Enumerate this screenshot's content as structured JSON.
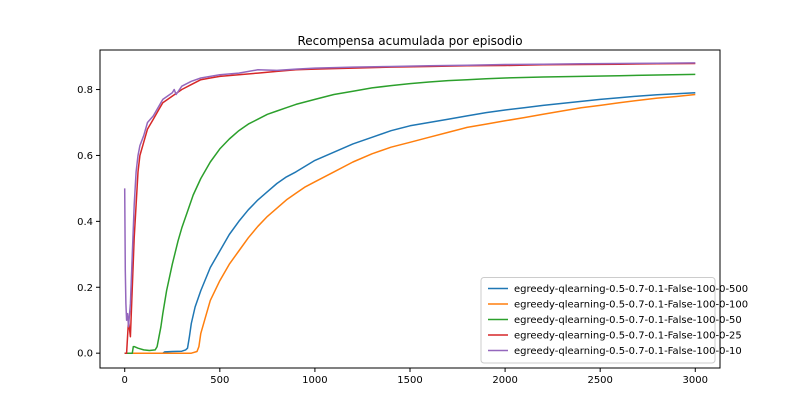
{
  "chart_data": {
    "type": "line",
    "title": "Recompensa acumulada por episodio",
    "xlabel": "",
    "ylabel": "",
    "xlim": [
      -130,
      3130
    ],
    "ylim": [
      -0.045,
      0.92
    ],
    "xticks": [
      0,
      500,
      1000,
      1500,
      2000,
      2500,
      3000
    ],
    "yticks": [
      0.0,
      0.2,
      0.4,
      0.6,
      0.8
    ],
    "ytick_labels": [
      "0.0",
      "0.2",
      "0.4",
      "0.6",
      "0.8"
    ],
    "grid": false,
    "legend_position": "bottom-right",
    "series": [
      {
        "name": "egreedy-qlearning-0.5-0.7-0.1-False-100-0-500",
        "color": "#1f77b4",
        "x": [
          0,
          200,
          210,
          250,
          300,
          320,
          330,
          340,
          350,
          370,
          400,
          450,
          500,
          550,
          600,
          650,
          700,
          750,
          800,
          850,
          900,
          1000,
          1100,
          1200,
          1300,
          1400,
          1500,
          1600,
          1700,
          1800,
          1900,
          2000,
          2100,
          2200,
          2300,
          2400,
          2500,
          2600,
          2700,
          2800,
          2900,
          3000
        ],
        "y": [
          0.0,
          0.0,
          0.004,
          0.005,
          0.006,
          0.01,
          0.015,
          0.05,
          0.09,
          0.14,
          0.19,
          0.26,
          0.31,
          0.36,
          0.4,
          0.435,
          0.465,
          0.49,
          0.515,
          0.535,
          0.55,
          0.585,
          0.61,
          0.635,
          0.655,
          0.675,
          0.69,
          0.7,
          0.71,
          0.72,
          0.73,
          0.738,
          0.745,
          0.752,
          0.758,
          0.764,
          0.77,
          0.775,
          0.78,
          0.784,
          0.787,
          0.79
        ]
      },
      {
        "name": "egreedy-qlearning-0.5-0.7-0.1-False-100-0-100",
        "color": "#ff7f0e",
        "x": [
          0,
          350,
          380,
          390,
          400,
          420,
          450,
          500,
          550,
          600,
          650,
          700,
          750,
          800,
          850,
          900,
          950,
          1000,
          1100,
          1200,
          1300,
          1400,
          1500,
          1600,
          1700,
          1800,
          1900,
          2000,
          2100,
          2200,
          2300,
          2400,
          2500,
          2600,
          2700,
          2800,
          2900,
          3000
        ],
        "y": [
          0.0,
          0.0,
          0.005,
          0.02,
          0.06,
          0.1,
          0.16,
          0.22,
          0.27,
          0.31,
          0.35,
          0.385,
          0.415,
          0.44,
          0.465,
          0.485,
          0.505,
          0.52,
          0.55,
          0.58,
          0.605,
          0.625,
          0.64,
          0.655,
          0.67,
          0.685,
          0.695,
          0.705,
          0.715,
          0.725,
          0.735,
          0.745,
          0.752,
          0.76,
          0.767,
          0.774,
          0.779,
          0.785
        ]
      },
      {
        "name": "egreedy-qlearning-0.5-0.7-0.1-False-100-0-50",
        "color": "#2ca02c",
        "x": [
          0,
          40,
          45,
          50,
          70,
          100,
          130,
          160,
          170,
          180,
          190,
          200,
          220,
          250,
          280,
          300,
          330,
          360,
          400,
          450,
          500,
          550,
          600,
          650,
          700,
          750,
          800,
          850,
          900,
          1000,
          1100,
          1200,
          1300,
          1400,
          1500,
          1600,
          1700,
          1800,
          1900,
          2000,
          2200,
          2400,
          2600,
          2800,
          3000
        ],
        "y": [
          0.0,
          0.0,
          0.02,
          0.02,
          0.015,
          0.01,
          0.008,
          0.01,
          0.02,
          0.05,
          0.08,
          0.12,
          0.19,
          0.27,
          0.34,
          0.38,
          0.43,
          0.48,
          0.53,
          0.58,
          0.62,
          0.65,
          0.675,
          0.695,
          0.71,
          0.725,
          0.735,
          0.745,
          0.755,
          0.77,
          0.785,
          0.795,
          0.805,
          0.812,
          0.818,
          0.823,
          0.827,
          0.83,
          0.833,
          0.835,
          0.838,
          0.84,
          0.842,
          0.844,
          0.846
        ]
      },
      {
        "name": "egreedy-qlearning-0.5-0.7-0.1-False-100-0-25",
        "color": "#d62728",
        "x": [
          0,
          5,
          10,
          20,
          30,
          40,
          50,
          60,
          70,
          80,
          100,
          120,
          150,
          180,
          200,
          250,
          300,
          350,
          400,
          450,
          500,
          600,
          700,
          800,
          900,
          1000,
          1200,
          1400,
          1600,
          1800,
          2000,
          2200,
          2400,
          2600,
          2800,
          3000
        ],
        "y": [
          0.0,
          0.0,
          0.0,
          0.1,
          0.05,
          0.2,
          0.35,
          0.45,
          0.55,
          0.6,
          0.64,
          0.68,
          0.71,
          0.74,
          0.76,
          0.78,
          0.8,
          0.815,
          0.83,
          0.835,
          0.84,
          0.845,
          0.85,
          0.855,
          0.86,
          0.862,
          0.865,
          0.868,
          0.87,
          0.872,
          0.873,
          0.875,
          0.876,
          0.877,
          0.878,
          0.879
        ]
      },
      {
        "name": "egreedy-qlearning-0.5-0.7-0.1-False-100-0-10",
        "color": "#9467bd",
        "x": [
          0,
          3,
          6,
          10,
          15,
          20,
          30,
          40,
          50,
          60,
          70,
          80,
          100,
          120,
          150,
          180,
          200,
          250,
          260,
          270,
          300,
          350,
          400,
          450,
          500,
          600,
          700,
          800,
          900,
          1000,
          1200,
          1400,
          1600,
          1800,
          2000,
          2200,
          2400,
          2600,
          2800,
          3000
        ],
        "y": [
          0.5,
          0.25,
          0.15,
          0.1,
          0.12,
          0.08,
          0.15,
          0.3,
          0.45,
          0.55,
          0.6,
          0.63,
          0.66,
          0.7,
          0.72,
          0.75,
          0.77,
          0.79,
          0.8,
          0.785,
          0.81,
          0.825,
          0.835,
          0.84,
          0.845,
          0.85,
          0.86,
          0.858,
          0.862,
          0.865,
          0.868,
          0.87,
          0.872,
          0.874,
          0.876,
          0.877,
          0.878,
          0.879,
          0.88,
          0.881
        ]
      }
    ]
  }
}
